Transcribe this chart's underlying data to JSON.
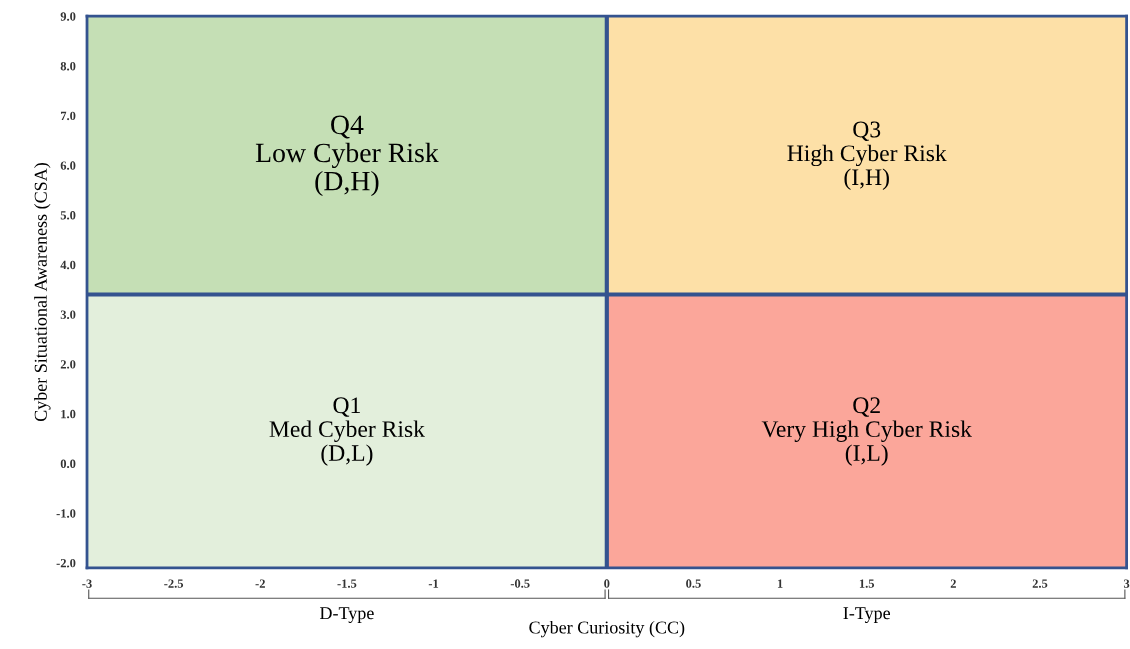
{
  "chart_data": {
    "type": "bar",
    "xlabel": "Cyber Curiosity (CC)",
    "ylabel": "Cyber Situational Awareness (CSA)",
    "xlim": [
      -3,
      3
    ],
    "ylim": [
      -2.1,
      9
    ],
    "xticks": [
      -3,
      -2.5,
      -2,
      -1.5,
      -1,
      -0.5,
      0,
      0.5,
      1,
      1.5,
      2,
      2.5,
      3
    ],
    "yticks": [
      {
        "value": -2,
        "label": "-2.0"
      },
      {
        "value": -1,
        "label": "-1.0"
      },
      {
        "value": 0,
        "label": "0.0"
      },
      {
        "value": 1,
        "label": "1.0"
      },
      {
        "value": 2,
        "label": "2.0"
      },
      {
        "value": 3,
        "label": "3.0"
      },
      {
        "value": 4,
        "label": "4.0"
      },
      {
        "value": 5,
        "label": "5.0"
      },
      {
        "value": 6,
        "label": "6.0"
      },
      {
        "value": 7,
        "label": "7.0"
      },
      {
        "value": 8,
        "label": "8.0"
      },
      {
        "value": 9,
        "label": "9.0"
      }
    ],
    "x": [
      -1.5,
      1.5
    ],
    "series": [
      {
        "colors": [
          "#e3efdc",
          "#fba69a"
        ],
        "base": [
          -2.1,
          -2.1
        ],
        "values": [
          5.5,
          5.5
        ]
      },
      {
        "colors": [
          "#c5dfb5",
          "#fde0a7"
        ],
        "base": [
          3.4,
          3.4
        ],
        "values": [
          5.6,
          5.6
        ]
      }
    ],
    "ref_lines": [
      {
        "axis": "x",
        "value": 0,
        "color": "#34538f"
      },
      {
        "axis": "y",
        "value": 3.4,
        "color": "#34538f"
      }
    ],
    "annotations": [
      "Q1\nMed Cyber Risk\n(D,L)",
      "Q2\nVery High Cyber Risk\n(I,L)",
      "Q4\nLow Cyber Risk\n(D,H)",
      "Q3\nHigh Cyber Risk\n(I,H)",
      "D-Type",
      "I-Type"
    ]
  }
}
